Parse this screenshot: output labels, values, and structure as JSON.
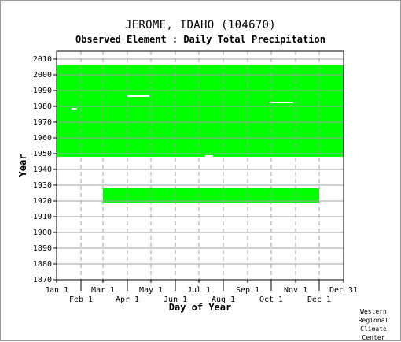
{
  "title": "JEROME, IDAHO    (104670)",
  "subtitle": "Observed Element : Daily Total Precipitation",
  "credit": [
    "Western",
    "Regional",
    "Climate",
    "Center"
  ],
  "colors": {
    "data": "#00ff00",
    "grid": "#a0a0a0",
    "axis": "#000000"
  },
  "chart_data": {
    "type": "heatmap",
    "xlabel": "Day of Year",
    "ylabel": "Year",
    "xlim": [
      1,
      366
    ],
    "ylim": [
      1870,
      2011
    ],
    "x_ticks": [
      {
        "label": "Jan 1",
        "day": 1,
        "row": 0
      },
      {
        "label": "Feb 1",
        "day": 32,
        "row": 1
      },
      {
        "label": "Mar 1",
        "day": 60,
        "row": 0
      },
      {
        "label": "Apr 1",
        "day": 91,
        "row": 1
      },
      {
        "label": "May 1",
        "day": 121,
        "row": 0
      },
      {
        "label": "Jun 1",
        "day": 152,
        "row": 1
      },
      {
        "label": "Jul 1",
        "day": 182,
        "row": 0
      },
      {
        "label": "Aug 1",
        "day": 213,
        "row": 1
      },
      {
        "label": "Sep 1",
        "day": 244,
        "row": 0
      },
      {
        "label": "Oct 1",
        "day": 274,
        "row": 1
      },
      {
        "label": "Nov 1",
        "day": 305,
        "row": 0
      },
      {
        "label": "Dec 1",
        "day": 335,
        "row": 1
      },
      {
        "label": "Dec 31",
        "day": 366,
        "row": 0
      }
    ],
    "y_ticks": [
      2010,
      2000,
      1990,
      1980,
      1970,
      1960,
      1950,
      1940,
      1930,
      1920,
      1910,
      1900,
      1890,
      1880,
      1870
    ],
    "grid": true,
    "series": [
      {
        "year_start": 1948,
        "year_end": 2006,
        "day_start": 1,
        "day_end": 366,
        "value": 1
      },
      {
        "year_start": 1919,
        "year_end": 1928,
        "day_start": 60,
        "day_end": 335,
        "value": 1
      }
    ],
    "gaps": [
      {
        "year_start": 1986,
        "year_end": 1987,
        "day_start": 91,
        "day_end": 119,
        "value": 0
      },
      {
        "year_start": 1982,
        "year_end": 1983,
        "day_start": 272,
        "day_end": 302,
        "value": 0
      },
      {
        "year_start": 1978,
        "year_end": 1979,
        "day_start": 20,
        "day_end": 27,
        "value": 0
      },
      {
        "year_start": 1948,
        "year_end": 1949,
        "day_start": 190,
        "day_end": 200,
        "value": 0
      }
    ]
  }
}
